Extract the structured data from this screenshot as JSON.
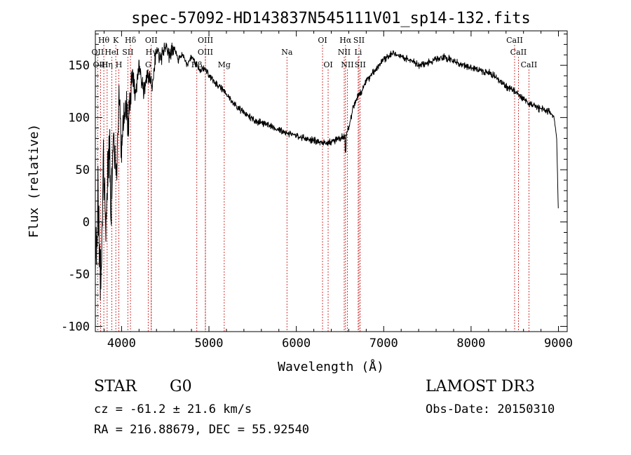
{
  "chart_data": {
    "type": "line",
    "title": "spec-57092-HD143837N545111V01_sp14-132.fits",
    "xlabel": "Wavelength (Å)",
    "ylabel": "Flux (relative)",
    "xlim": [
      3700,
      9100
    ],
    "ylim": [
      -105,
      183
    ],
    "x_ticks": [
      4000,
      5000,
      6000,
      7000,
      8000,
      9000
    ],
    "y_ticks": [
      -100,
      -50,
      0,
      50,
      100,
      150
    ],
    "grid": false,
    "colors": {
      "line": "#000000",
      "marker_line": "#cc2222",
      "axis": "#000000"
    },
    "series": [
      {
        "name": "flux",
        "x": [
          3700,
          3730,
          3760,
          3790,
          3820,
          3850,
          3880,
          3910,
          3940,
          3970,
          4000,
          4040,
          4080,
          4120,
          4160,
          4200,
          4250,
          4300,
          4350,
          4400,
          4450,
          4500,
          4550,
          4600,
          4650,
          4700,
          4750,
          4800,
          4860,
          4900,
          4950,
          5000,
          5050,
          5100,
          5150,
          5200,
          5300,
          5400,
          5500,
          5600,
          5700,
          5800,
          5900,
          6000,
          6100,
          6200,
          6300,
          6400,
          6500,
          6560,
          6600,
          6650,
          6700,
          6750,
          6800,
          6900,
          7000,
          7100,
          7200,
          7300,
          7400,
          7500,
          7600,
          7700,
          7800,
          7900,
          8000,
          8100,
          8200,
          8300,
          8400,
          8500,
          8600,
          8700,
          8800,
          8900,
          8950,
          8980,
          9000
        ],
        "y": [
          -40,
          10,
          -60,
          60,
          -20,
          75,
          30,
          85,
          40,
          120,
          70,
          110,
          95,
          140,
          120,
          150,
          125,
          140,
          130,
          165,
          155,
          170,
          160,
          168,
          155,
          160,
          150,
          158,
          150,
          145,
          147,
          140,
          135,
          130,
          128,
          122,
          112,
          105,
          98,
          95,
          92,
          88,
          85,
          83,
          80,
          78,
          76,
          77,
          80,
          82,
          90,
          110,
          120,
          125,
          135,
          145,
          155,
          162,
          158,
          155,
          150,
          152,
          156,
          158,
          154,
          150,
          148,
          145,
          143,
          138,
          130,
          125,
          118,
          112,
          108,
          105,
          100,
          80,
          5
        ]
      }
    ],
    "line_markers": [
      {
        "name": "Hθ",
        "x": 3797,
        "row": 0
      },
      {
        "name": "K",
        "x": 3934,
        "row": 0
      },
      {
        "name": "Hδ",
        "x": 4102,
        "row": 0
      },
      {
        "name": "OII",
        "x": 4340,
        "row": 0
      },
      {
        "name": "OIII",
        "x": 4960,
        "row": 0
      },
      {
        "name": "OI",
        "x": 6300,
        "row": 0
      },
      {
        "name": "Hα",
        "x": 6563,
        "row": 0
      },
      {
        "name": "SII",
        "x": 6717,
        "row": 0
      },
      {
        "name": "CaII",
        "x": 8498,
        "row": 0
      },
      {
        "name": "OII",
        "x": 3727,
        "row": 1
      },
      {
        "name": "HeI",
        "x": 3889,
        "row": 1
      },
      {
        "name": "SII",
        "x": 4072,
        "row": 1
      },
      {
        "name": "Hγ",
        "x": 4340,
        "row": 1
      },
      {
        "name": "OIII",
        "x": 4959,
        "row": 1
      },
      {
        "name": "Na",
        "x": 5893,
        "row": 1
      },
      {
        "name": "NII",
        "x": 6548,
        "row": 1
      },
      {
        "name": "Li",
        "x": 6708,
        "row": 1
      },
      {
        "name": "CaII",
        "x": 8542,
        "row": 1
      },
      {
        "name": "OIII",
        "x": 3760,
        "row": 2
      },
      {
        "name": "Hη",
        "x": 3835,
        "row": 2
      },
      {
        "name": "H",
        "x": 3969,
        "row": 2
      },
      {
        "name": "G",
        "x": 4305,
        "row": 2
      },
      {
        "name": "Hβ",
        "x": 4861,
        "row": 2
      },
      {
        "name": "Mg",
        "x": 5175,
        "row": 2
      },
      {
        "name": "OI",
        "x": 6364,
        "row": 2
      },
      {
        "name": "NII",
        "x": 6584,
        "row": 2
      },
      {
        "name": "SII",
        "x": 6731,
        "row": 2
      },
      {
        "name": "CaII",
        "x": 8662,
        "row": 2
      }
    ]
  },
  "info": {
    "object_class": "STAR",
    "subclass": "G0",
    "redshift": "cz = -61.2 ± 21.6 km/s",
    "coords": "RA = 216.88679, DEC =  55.92540",
    "survey": "LAMOST DR3",
    "obs_date": "Obs-Date: 20150310"
  }
}
